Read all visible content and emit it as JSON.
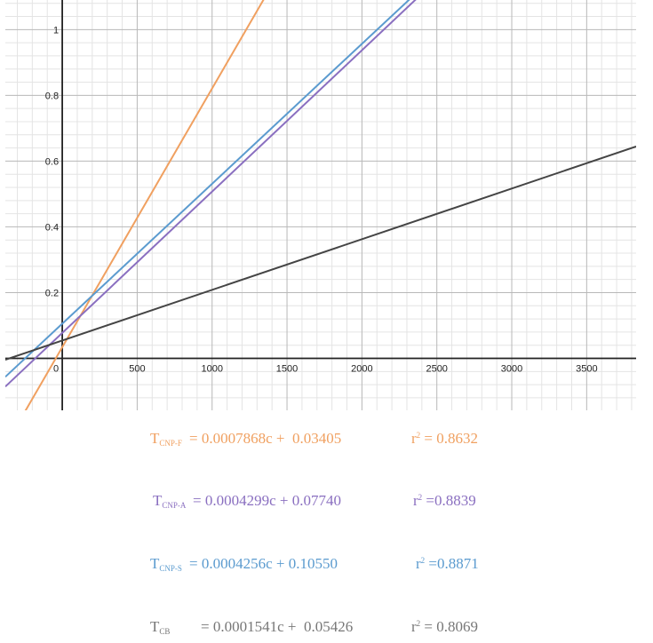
{
  "chart_data": {
    "type": "line",
    "title": "",
    "xlabel": "",
    "ylabel": "",
    "xlim": [
      -380,
      3830
    ],
    "ylim": [
      -0.158,
      1.09
    ],
    "x_ticks": [
      "0",
      "500",
      "1000",
      "1500",
      "2000",
      "2500",
      "3000",
      "3500"
    ],
    "y_ticks": [
      "0.2",
      "0.4",
      "0.6",
      "0.8",
      "1"
    ],
    "x_tick_values": [
      0,
      500,
      1000,
      1500,
      2000,
      2500,
      3000,
      3500
    ],
    "y_tick_values": [
      0.2,
      0.4,
      0.6,
      0.8,
      1
    ],
    "grid": true,
    "series": [
      {
        "color": "#f0a060",
        "slope": 0.0007868,
        "intercept": 0.03405
      },
      {
        "color": "#8a6fc0",
        "slope": 0.0004299,
        "intercept": 0.0774
      },
      {
        "color": "#5b9bcf",
        "slope": 0.0004256,
        "intercept": 0.1055
      },
      {
        "color": "#444444",
        "slope": 0.0001541,
        "intercept": 0.05426
      }
    ]
  },
  "equations": [
    {
      "symbol": "T",
      "subscript": "CNP-F",
      "rhs": "= 0.0007868c +  0.03405",
      "r2_label": "r",
      "r2_sup": "2",
      "r2_value": "= 0.8632",
      "color": "#f0a060"
    },
    {
      "symbol": "T",
      "subscript": "CNP-A",
      "rhs": "= 0.0004299c + 0.07740",
      "r2_label": "r",
      "r2_sup": "2",
      "r2_value": "=0.8839",
      "color": "#8a6fc0"
    },
    {
      "symbol": "T",
      "subscript": "CNP-S",
      "rhs": "= 0.0004256c + 0.10550",
      "r2_label": "r",
      "r2_sup": "2",
      "r2_value": "=0.8871",
      "color": "#5b9bcf"
    },
    {
      "symbol": "T",
      "subscript": "CB",
      "rhs": "= 0.0001541c +  0.05426",
      "r2_label": "r",
      "r2_sup": "2",
      "r2_value": "= 0.8069",
      "color": "#777777"
    }
  ]
}
